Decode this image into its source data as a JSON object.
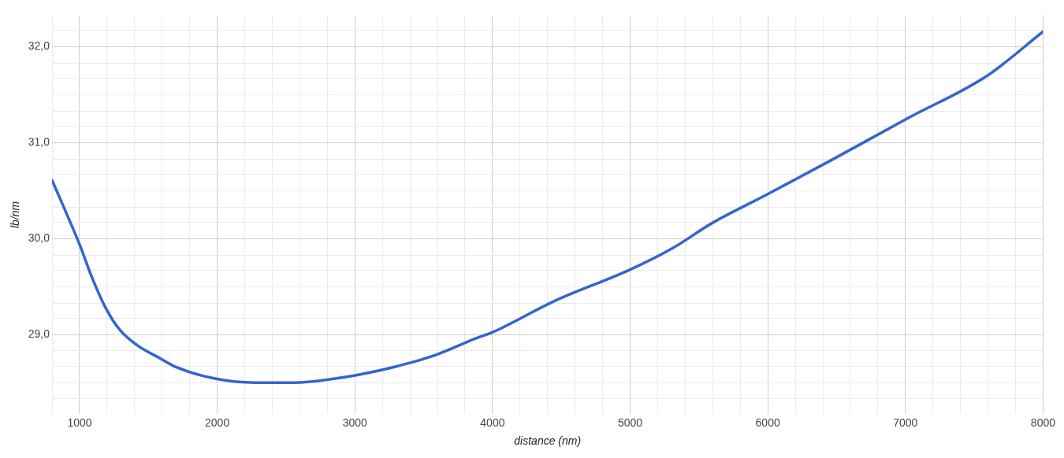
{
  "chart_data": {
    "type": "line",
    "xlabel": "distance (nm)",
    "ylabel": "lb/nm",
    "x": [
      800,
      1000,
      1092,
      1189,
      1292,
      1418,
      1589,
      1704,
      1990,
      2275,
      2561,
      2847,
      3019,
      3305,
      3591,
      3877,
      4008,
      4449,
      5003,
      5307,
      5592,
      5993,
      6450,
      7022,
      7594,
      8000
    ],
    "series": [
      {
        "color": "#3366cc",
        "values": [
          30.61,
          29.94,
          29.59,
          29.28,
          29.05,
          28.89,
          28.75,
          28.66,
          28.54,
          28.5,
          28.5,
          28.54,
          28.58,
          28.67,
          28.79,
          28.96,
          29.03,
          29.35,
          29.68,
          29.9,
          30.16,
          30.46,
          30.81,
          31.26,
          31.7,
          32.16
        ]
      }
    ],
    "xlim": [
      800,
      8000
    ],
    "ylim": [
      28.17,
      32.33
    ],
    "xticks": [
      {
        "value": 800,
        "label": null
      },
      1000,
      {
        "value": 1200,
        "label": null
      },
      {
        "value": 1400,
        "label": null
      },
      {
        "value": 1600,
        "label": null
      },
      {
        "value": 1800,
        "label": null
      },
      2000,
      {
        "value": 2200,
        "label": null
      },
      {
        "value": 2400,
        "label": null
      },
      {
        "value": 2600,
        "label": null
      },
      {
        "value": 2800,
        "label": null
      },
      3000,
      {
        "value": 3200,
        "label": null
      },
      {
        "value": 3400,
        "label": null
      },
      {
        "value": 3600,
        "label": null
      },
      {
        "value": 3800,
        "label": null
      },
      4000,
      {
        "value": 4200,
        "label": null
      },
      {
        "value": 4400,
        "label": null
      },
      {
        "value": 4600,
        "label": null
      },
      {
        "value": 4800,
        "label": null
      },
      5000,
      {
        "value": 5200,
        "label": null
      },
      {
        "value": 5400,
        "label": null
      },
      {
        "value": 5600,
        "label": null
      },
      {
        "value": 5800,
        "label": null
      },
      6000,
      {
        "value": 6200,
        "label": null
      },
      {
        "value": 6400,
        "label": null
      },
      {
        "value": 6600,
        "label": null
      },
      {
        "value": 6800,
        "label": null
      },
      7000,
      {
        "value": 7200,
        "label": null
      },
      {
        "value": 7400,
        "label": null
      },
      {
        "value": 7600,
        "label": null
      },
      {
        "value": 7800,
        "label": null
      },
      8000
    ],
    "yticks": [
      {
        "value": 28.33,
        "label": null
      },
      {
        "value": 28.5,
        "label": null
      },
      {
        "value": 28.67,
        "label": null
      },
      {
        "value": 28.83,
        "label": null
      },
      {
        "value": 29,
        "label": "29,0"
      },
      {
        "value": 29.17,
        "label": null
      },
      {
        "value": 29.33,
        "label": null
      },
      {
        "value": 29.5,
        "label": null
      },
      {
        "value": 29.67,
        "label": null
      },
      {
        "value": 29.83,
        "label": null
      },
      {
        "value": 30,
        "label": "30,0"
      },
      {
        "value": 30.17,
        "label": null
      },
      {
        "value": 30.33,
        "label": null
      },
      {
        "value": 30.5,
        "label": null
      },
      {
        "value": 30.67,
        "label": null
      },
      {
        "value": 30.83,
        "label": null
      },
      {
        "value": 31,
        "label": "31,0"
      },
      {
        "value": 31.17,
        "label": null
      },
      {
        "value": 31.33,
        "label": null
      },
      {
        "value": 31.5,
        "label": null
      },
      {
        "value": 31.67,
        "label": null
      },
      {
        "value": 31.83,
        "label": null
      },
      {
        "value": 32,
        "label": "32,0"
      },
      {
        "value": 32.17,
        "label": null
      }
    ],
    "grid": true,
    "legend": false,
    "marker": "none",
    "line_style": "solid"
  }
}
